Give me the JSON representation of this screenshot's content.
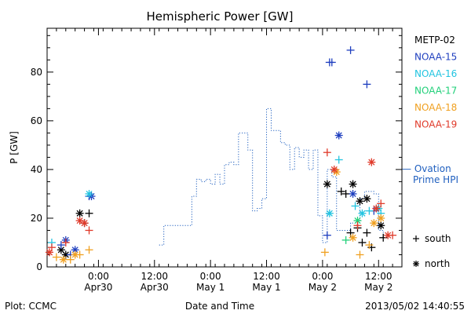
{
  "chart_data": {
    "type": "scatter",
    "title": "Hemispheric Power [GW]",
    "ylabel": "P [GW]",
    "xlabel": "Date and Time",
    "ylim": [
      0,
      98
    ],
    "xlim": [
      "2013-04-29T13:00",
      "2013-05-02T17:00"
    ],
    "yticks": [
      0,
      20,
      40,
      60,
      80
    ],
    "xticks": [
      {
        "time": "2013-04-30T00:00",
        "line1": "0:00",
        "line2": "Apr30"
      },
      {
        "time": "2013-04-30T12:00",
        "line1": "12:00",
        "line2": "Apr30"
      },
      {
        "time": "2013-05-01T00:00",
        "line1": "0:00",
        "line2": "May 1"
      },
      {
        "time": "2013-05-01T12:00",
        "line1": "12:00",
        "line2": "May 1"
      },
      {
        "time": "2013-05-02T00:00",
        "line1": "0:00",
        "line2": "May 2"
      },
      {
        "time": "2013-05-02T12:00",
        "line1": "12:00",
        "line2": "May 2"
      }
    ],
    "legend": [
      {
        "name": "METP-02",
        "color": "#000000"
      },
      {
        "name": "NOAA-15",
        "color": "#1f3fbf"
      },
      {
        "name": "NOAA-16",
        "color": "#22c4e0"
      },
      {
        "name": "NOAA-17",
        "color": "#22d07a"
      },
      {
        "name": "NOAA-18",
        "color": "#f0a020"
      },
      {
        "name": "NOAA-19",
        "color": "#e03a2a"
      }
    ],
    "ovation": {
      "label1": "— Ovation",
      "label2": "Prime HPI",
      "color": "#1f5fbf",
      "segments": [
        [
          "2013-04-30T13:00",
          9
        ],
        [
          "2013-04-30T14:00",
          17
        ],
        [
          "2013-04-30T20:00",
          29
        ],
        [
          "2013-04-30T21:00",
          36
        ],
        [
          "2013-04-30T22:00",
          35
        ],
        [
          "2013-04-30T23:00",
          36
        ],
        [
          "2013-05-01T00:00",
          34
        ],
        [
          "2013-05-01T01:00",
          38
        ],
        [
          "2013-05-01T02:00",
          34
        ],
        [
          "2013-05-01T03:00",
          42
        ],
        [
          "2013-05-01T04:00",
          43
        ],
        [
          "2013-05-01T05:00",
          42
        ],
        [
          "2013-05-01T06:00",
          55
        ],
        [
          "2013-05-01T08:00",
          48
        ],
        [
          "2013-05-01T09:00",
          23
        ],
        [
          "2013-05-01T10:00",
          24
        ],
        [
          "2013-05-01T11:00",
          28
        ],
        [
          "2013-05-01T12:00",
          65
        ],
        [
          "2013-05-01T13:00",
          56
        ],
        [
          "2013-05-01T15:00",
          51
        ],
        [
          "2013-05-01T16:00",
          50
        ],
        [
          "2013-05-01T17:00",
          40
        ],
        [
          "2013-05-01T18:00",
          49
        ],
        [
          "2013-05-01T19:00",
          45
        ],
        [
          "2013-05-01T20:00",
          48
        ],
        [
          "2013-05-01T21:00",
          40
        ],
        [
          "2013-05-01T22:00",
          48
        ],
        [
          "2013-05-01T23:00",
          21
        ],
        [
          "2013-05-02T00:00",
          10
        ],
        [
          "2013-05-02T01:00",
          40
        ],
        [
          "2013-05-02T02:00",
          37
        ],
        [
          "2013-05-02T03:00",
          15
        ],
        [
          "2013-05-02T06:00",
          18
        ],
        [
          "2013-05-02T08:00",
          28
        ],
        [
          "2013-05-02T09:00",
          31
        ],
        [
          "2013-05-02T11:00",
          30
        ],
        [
          "2013-05-02T12:00",
          15
        ],
        [
          "2013-05-02T13:00",
          12
        ],
        [
          "2013-05-02T15:00",
          12
        ]
      ]
    },
    "marker_key": [
      {
        "symbol": "+",
        "label": "south"
      },
      {
        "symbol": "*",
        "label": "north"
      }
    ],
    "series": [
      {
        "name": "METP-02",
        "color": "#000000",
        "south": [
          [
            "2013-04-29T21:00",
            18
          ],
          [
            "2013-04-29T22:00",
            22
          ],
          [
            "2013-05-02T04:00",
            31
          ],
          [
            "2013-05-02T05:00",
            30
          ],
          [
            "2013-05-02T06:00",
            14
          ],
          [
            "2013-05-02T07:30",
            16
          ],
          [
            "2013-05-02T08:30",
            10
          ],
          [
            "2013-05-02T09:30",
            14
          ],
          [
            "2013-05-02T10:30",
            8
          ],
          [
            "2013-05-02T13:00",
            12
          ]
        ],
        "north": [
          [
            "2013-04-29T16:00",
            7
          ],
          [
            "2013-04-29T17:00",
            5
          ],
          [
            "2013-04-29T20:00",
            22
          ],
          [
            "2013-05-02T01:00",
            34
          ],
          [
            "2013-05-02T06:30",
            34
          ],
          [
            "2013-05-02T08:00",
            27
          ],
          [
            "2013-05-02T09:30",
            28
          ],
          [
            "2013-05-02T12:30",
            17
          ]
        ]
      },
      {
        "name": "NOAA-15",
        "color": "#1f3fbf",
        "south": [
          [
            "2013-04-29T16:00",
            9
          ],
          [
            "2013-04-29T18:00",
            5
          ],
          [
            "2013-04-29T22:00",
            29
          ],
          [
            "2013-05-02T01:00",
            13
          ],
          [
            "2013-05-02T01:30",
            84
          ],
          [
            "2013-05-02T02:00",
            84
          ],
          [
            "2013-05-02T06:00",
            89
          ],
          [
            "2013-05-02T09:30",
            75
          ],
          [
            "2013-05-02T11:00",
            23
          ]
        ],
        "north": [
          [
            "2013-04-29T17:00",
            11
          ],
          [
            "2013-04-29T19:00",
            7
          ],
          [
            "2013-04-29T22:30",
            29
          ],
          [
            "2013-05-02T03:30",
            54
          ],
          [
            "2013-05-02T06:30",
            30
          ]
        ]
      },
      {
        "name": "NOAA-16",
        "color": "#22c4e0",
        "south": [
          [
            "2013-04-29T14:00",
            10
          ],
          [
            "2013-05-02T03:30",
            44
          ],
          [
            "2013-05-02T07:00",
            25
          ],
          [
            "2013-05-02T10:00",
            23
          ],
          [
            "2013-05-02T12:30",
            22
          ]
        ],
        "north": [
          [
            "2013-04-29T22:00",
            30
          ],
          [
            "2013-05-02T01:30",
            22
          ],
          [
            "2013-05-02T08:30",
            22
          ],
          [
            "2013-05-02T12:00",
            24
          ]
        ]
      },
      {
        "name": "NOAA-17",
        "color": "#22d07a",
        "south": [
          [
            "2013-05-02T05:00",
            11
          ]
        ],
        "north": [
          [
            "2013-05-02T07:30",
            19
          ]
        ]
      },
      {
        "name": "NOAA-18",
        "color": "#f0a020",
        "south": [
          [
            "2013-04-29T15:00",
            4
          ],
          [
            "2013-04-29T18:00",
            3
          ],
          [
            "2013-04-29T20:00",
            5
          ],
          [
            "2013-04-29T22:00",
            7
          ],
          [
            "2013-05-02T00:30",
            6
          ],
          [
            "2013-05-02T08:00",
            5
          ],
          [
            "2013-05-02T10:00",
            9
          ]
        ],
        "north": [
          [
            "2013-04-29T16:30",
            3
          ],
          [
            "2013-04-29T19:00",
            5
          ],
          [
            "2013-05-02T03:00",
            39
          ],
          [
            "2013-05-02T06:30",
            12
          ],
          [
            "2013-05-02T11:00",
            18
          ],
          [
            "2013-05-02T12:30",
            20
          ]
        ]
      },
      {
        "name": "NOAA-19",
        "color": "#e03a2a",
        "south": [
          [
            "2013-04-29T14:00",
            8
          ],
          [
            "2013-04-29T17:00",
            10
          ],
          [
            "2013-04-29T22:00",
            15
          ],
          [
            "2013-05-02T01:00",
            47
          ],
          [
            "2013-05-02T07:30",
            17
          ],
          [
            "2013-05-02T12:30",
            26
          ],
          [
            "2013-05-02T15:00",
            13
          ]
        ],
        "north": [
          [
            "2013-04-29T13:30",
            6
          ],
          [
            "2013-04-29T20:00",
            19
          ],
          [
            "2013-04-29T21:00",
            18
          ],
          [
            "2013-05-02T02:30",
            40
          ],
          [
            "2013-05-02T10:30",
            43
          ],
          [
            "2013-05-02T11:30",
            24
          ],
          [
            "2013-05-02T14:00",
            13
          ]
        ]
      }
    ]
  },
  "footer": {
    "plot_credit": "Plot: CCMC",
    "timestamp": "2013/05/02 14:40:55"
  }
}
